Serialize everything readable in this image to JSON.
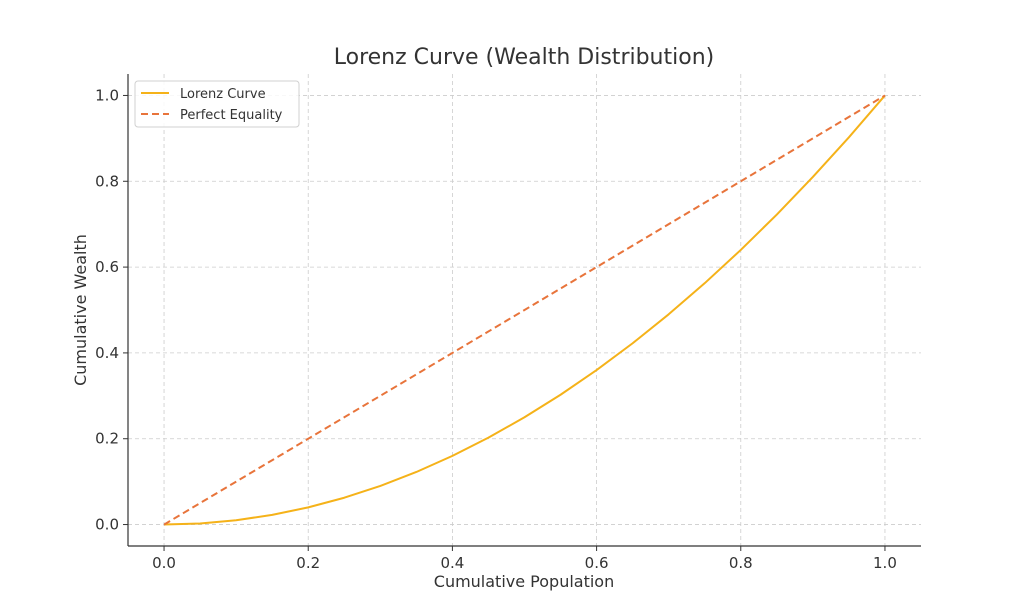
{
  "chart_data": {
    "type": "line",
    "title": "Lorenz Curve (Wealth Distribution)",
    "xlabel": "Cumulative Population",
    "ylabel": "Cumulative Wealth",
    "xlim": [
      -0.05,
      1.05
    ],
    "ylim": [
      -0.05,
      1.05
    ],
    "xticks": [
      0.0,
      0.2,
      0.4,
      0.6,
      0.8,
      1.0
    ],
    "yticks": [
      0.0,
      0.2,
      0.4,
      0.6,
      0.8,
      1.0
    ],
    "tick_format": "0.0",
    "grid": true,
    "legend_position": "top-left",
    "series": [
      {
        "name": "Lorenz Curve",
        "style": "solid",
        "color": "#f5b219",
        "x": [
          0.0,
          0.05,
          0.1,
          0.15,
          0.2,
          0.25,
          0.3,
          0.35,
          0.4,
          0.45,
          0.5,
          0.55,
          0.6,
          0.65,
          0.7,
          0.75,
          0.8,
          0.85,
          0.9,
          0.95,
          1.0
        ],
        "y": [
          0.0,
          0.0025,
          0.01,
          0.0225,
          0.04,
          0.0625,
          0.09,
          0.1225,
          0.16,
          0.2025,
          0.25,
          0.3025,
          0.36,
          0.4225,
          0.49,
          0.5625,
          0.64,
          0.7225,
          0.81,
          0.9025,
          1.0
        ]
      },
      {
        "name": "Perfect Equality",
        "style": "dashed",
        "color": "#e8743b",
        "x": [
          0.0,
          1.0
        ],
        "y": [
          0.0,
          1.0
        ]
      }
    ]
  }
}
